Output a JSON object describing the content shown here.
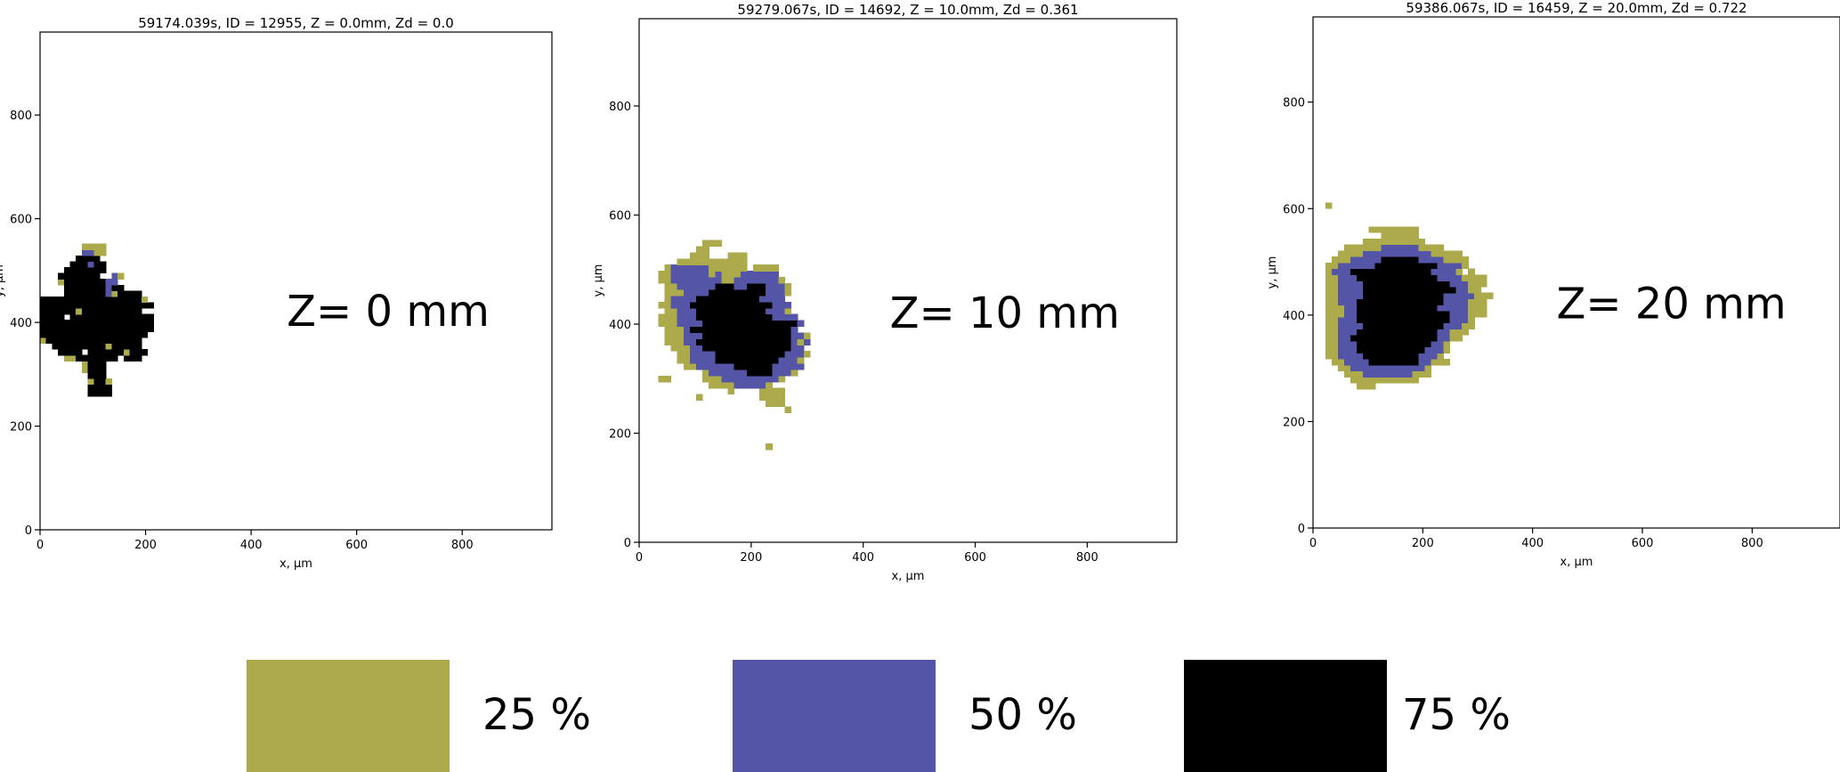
{
  "colors": {
    "p25": "#ADAA4B",
    "p50": "#5455A6",
    "p75": "#000000"
  },
  "chart_data": [
    {
      "type": "heatmap",
      "title": "59174.039s, ID = 12955, Z = 0.0mm, Zd = 0.0",
      "xlabel": "x, µm",
      "ylabel": "y, µm",
      "xlim": [
        0,
        970
      ],
      "ylim": [
        0,
        960
      ],
      "xticks": [
        0,
        200,
        400,
        600,
        800
      ],
      "yticks": [
        0,
        200,
        400,
        600,
        800
      ],
      "annotation": "Z= 0 mm",
      "cell_size": 11.3,
      "origin": [
        0,
        258
      ],
      "rows_from_bottom": [
        "........3333...........",
        "........3333...........",
        "........1331...........",
        "........333............",
        ".......1333............",
        ".......1333............",
        "....113333333.333......",
        "...3333.3333331333.....",
        "..333333333133333......",
        "13333333333333333......",
        "333333333333333333.....",
        "3333333333333333333....",
        "3333333333333333333....",
        "3333.33333333333333....",
        "33333313333333333......",
        "3333333333333333333....",
        "333333333333333331.....",
        "....3333333213333......",
        "....3333333233.........",
        "...1333333322..........",
        "...3333333..21.........",
        "....3333333............",
        ".....333233............",
        "......3333.............",
        ".......2211............",
        ".......1111............"
      ]
    },
    {
      "type": "heatmap",
      "title": "59279.067s, ID = 14692, Z = 10.0mm, Zd = 0.361",
      "xlabel": "x, µm",
      "ylabel": "y, µm",
      "xlim": [
        0,
        960
      ],
      "ylim": [
        0,
        960
      ],
      "xticks": [
        0,
        200,
        400,
        600,
        800
      ],
      "yticks": [
        0,
        200,
        400,
        600,
        800
      ],
      "annotation": "Z= 10 mm",
      "cell_size": 11.3,
      "origin": [
        0,
        170
      ],
      "rows_from_bottom": [
        "....................1........",
        ".............................",
        ".............................",
        ".............................",
        ".............................",
        ".............................",
        ".......................1.....",
        "....................111......",
        ".........1.........1111......",
        "..............1....1111......",
        "...........1111222221........",
        "...11.....1112222222221......",
        "..........122222233332221....",
        ".......1122222233333322222...",
        "......11222233333333332221...",
        "......112222333333333332221..",
        ".....111223333333333333322...",
        "....11122333333333333333212..",
        "....11122233333333333333221..",
        "....111233333333333333332....",
        "...11122223333333333333332...",
        "...1112223333333333332222....",
        "....11222333333333332221.....",
        "...112223333333333333222.....",
        "....1222233333333332222......",
        "....11122223333333332221.....",
        "....11222222333223332221.....",
        "...11222222221122222221......",
        "...1122222212111222222.......",
        "....1222222111111.1111.......",
        "......11111111111............",
        "........111...111............",
        ".........11..................",
        "..........111................"
      ]
    },
    {
      "type": "heatmap",
      "title": "59386.067s, ID = 16459, Z = 20.0mm, Zd = 0.722",
      "xlabel": "x, µm",
      "ylabel": "y, µm",
      "xlim": [
        0,
        960
      ],
      "ylim": [
        0,
        960
      ],
      "xticks": [
        0,
        200,
        400,
        600,
        800
      ],
      "yticks": [
        0,
        200,
        400,
        600,
        800
      ],
      "annotation": "Z= 20 mm",
      "cell_size": 11.3,
      "origin": [
        0,
        250
      ],
      "rows_from_bottom": [
        "...............................",
        ".......111.....................",
        "......11111111111..............",
        ".....11122222222111............",
        "....112222222222221............",
        "...1122223333333322111.........",
        "..1122223333333332221..........",
        "..11222333333333332221.........",
        "..11222333333333333221.........",
        "..1122333333333333332211.......",
        "..11222333333333333322111......",
        "..112222333333333333322211.....",
        "..112223333333333333332221.....",
        "..11122333333333333333222111...",
        "..11122333333333333322222111...",
        "..11222333333333333332222111...",
        "..112222333333333333322222111..",
        "..1122223333333333333332211....",
        "..11222233333333333333222111...",
        "..11222333333333333322221111...",
        "..1222333333333333322221.1.....",
        "..11222222333333333322221......",
        "...1112222233333322221111......",
        "....11112222222222211111.......",
        ".....1111112222221111..........",
        "........1111111111.............",
        "...........111111..............",
        ".........11111111..............",
        "...............................",
        "...............................",
        "...............................",
        "..1............................"
      ]
    }
  ],
  "legend": [
    {
      "key": "p25",
      "label": "25 %"
    },
    {
      "key": "p50",
      "label": "50 %"
    },
    {
      "key": "p75",
      "label": "75 %"
    }
  ]
}
